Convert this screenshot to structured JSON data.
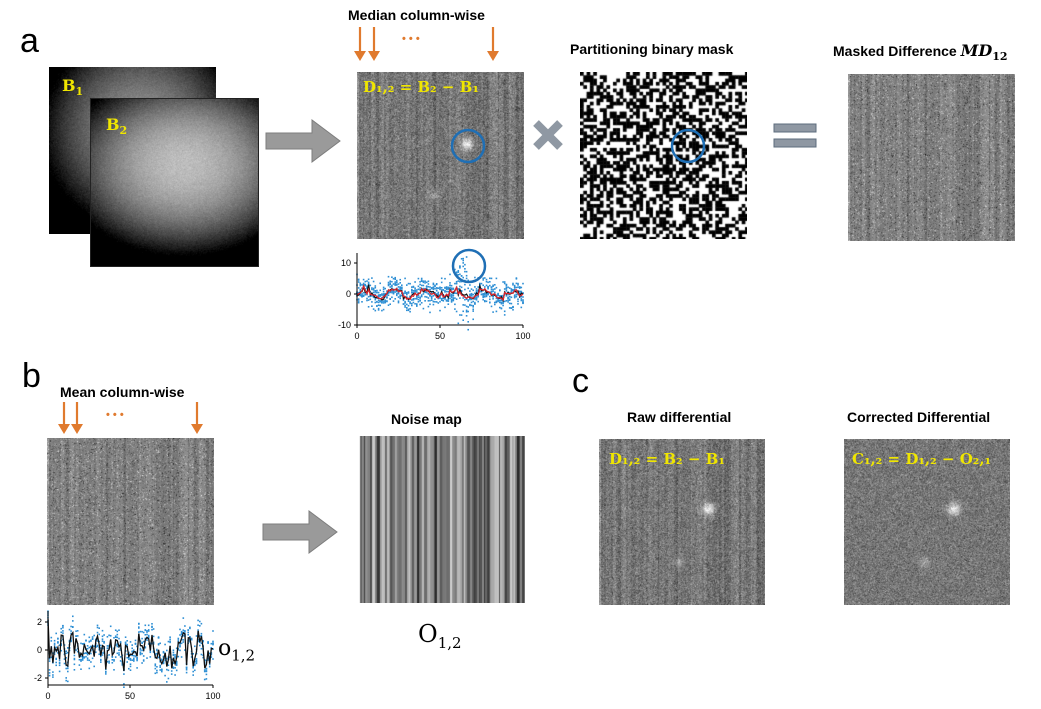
{
  "panels": {
    "a": {
      "letter": "a"
    },
    "b": {
      "letter": "b"
    },
    "c": {
      "letter": "c"
    }
  },
  "panel_a": {
    "b1_label": "B",
    "b1_sub": "1",
    "b2_label": "B",
    "b2_sub": "2",
    "median_caption": "Median  column-wise",
    "dots": "• • •",
    "diff_equation": "D₁,₂ = B₂ − B₁",
    "mask_caption": "Partitioning binary mask",
    "masked_caption_text": "Masked Difference ",
    "masked_caption_math": "MD",
    "masked_caption_sub": "12",
    "plot_ticks_y": [
      "10",
      "0",
      "-10"
    ],
    "plot_ticks_x": [
      "0",
      "50",
      "100"
    ]
  },
  "panel_b": {
    "mean_caption": "Mean  column-wise",
    "dots": "• • •",
    "noise_caption": "Noise map",
    "o_label": "o",
    "o_sub": "1,2",
    "noise_label": "O",
    "noise_sub": "1,2",
    "plot_ticks_y": [
      "2",
      "0",
      "-2"
    ],
    "plot_ticks_x": [
      "0",
      "50",
      "100"
    ]
  },
  "panel_c": {
    "raw_caption": "Raw differential",
    "raw_equation": "D₁,₂ = B₂ − B₁",
    "corr_caption": "Corrected Differential",
    "corr_equation": "C₁,₂ = D₁,₂ − O₂,₁"
  },
  "colors": {
    "arrow_orange": "#e07a2e",
    "circle_blue": "#1f6fb5",
    "eq_yellow": "#f0e600",
    "scatter_blue": "#2e8fd4",
    "median_red": "#d9262e",
    "gray_arrow": "#9a9a9a",
    "operator_gray": "#8f98a3"
  }
}
